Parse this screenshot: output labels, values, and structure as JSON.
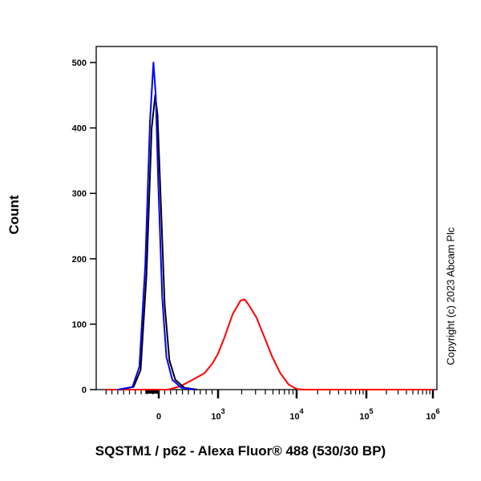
{
  "chart_data": {
    "type": "line",
    "title": "",
    "xlabel": "SQSTM1 / p62 - Alexa Fluor® 488 (530/30 BP)",
    "ylabel": "Count",
    "xscale": "logicle (biexponential)",
    "ylim": [
      0,
      500
    ],
    "yticks": [
      "0",
      "100",
      "200",
      "300",
      "400",
      "500"
    ],
    "xticks": [
      {
        "value": 0,
        "label": "0",
        "sup": ""
      },
      {
        "value": 1000,
        "label": "10",
        "sup": "3"
      },
      {
        "value": 10000,
        "label": "10",
        "sup": "4"
      },
      {
        "value": 100000,
        "label": "10",
        "sup": "5"
      },
      {
        "value": 1000000,
        "label": "10",
        "sup": "6"
      }
    ],
    "grid": false,
    "series": [
      {
        "color": "#0000ff",
        "points": [
          [
            -700,
            0
          ],
          [
            -450,
            4
          ],
          [
            -330,
            35
          ],
          [
            -230,
            190
          ],
          [
            -150,
            410
          ],
          [
            -90,
            500
          ],
          [
            -50,
            450
          ],
          [
            -10,
            320
          ],
          [
            60,
            140
          ],
          [
            130,
            50
          ],
          [
            230,
            15
          ],
          [
            380,
            3
          ],
          [
            600,
            0
          ]
        ]
      },
      {
        "color": "#000000",
        "points": [
          [
            -680,
            0
          ],
          [
            -430,
            4
          ],
          [
            -310,
            30
          ],
          [
            -210,
            175
          ],
          [
            -120,
            400
          ],
          [
            -60,
            450
          ],
          [
            -20,
            420
          ],
          [
            30,
            300
          ],
          [
            100,
            130
          ],
          [
            180,
            45
          ],
          [
            280,
            15
          ],
          [
            430,
            3
          ],
          [
            650,
            0
          ]
        ]
      },
      {
        "color": "#ff0000",
        "points": [
          [
            -900,
            0
          ],
          [
            160,
            0
          ],
          [
            365,
            5
          ],
          [
            570,
            15
          ],
          [
            770,
            25
          ],
          [
            905,
            40
          ],
          [
            1000,
            55
          ],
          [
            1210,
            80
          ],
          [
            1530,
            115
          ],
          [
            1930,
            136
          ],
          [
            2170,
            138
          ],
          [
            2440,
            130
          ],
          [
            3090,
            110
          ],
          [
            3900,
            80
          ],
          [
            4900,
            50
          ],
          [
            6200,
            25
          ],
          [
            7900,
            8
          ],
          [
            10000,
            1
          ],
          [
            12700,
            0
          ],
          [
            1000000,
            0
          ]
        ]
      }
    ]
  },
  "copyright": "Copyright (c) 2023 Abcam Plc"
}
